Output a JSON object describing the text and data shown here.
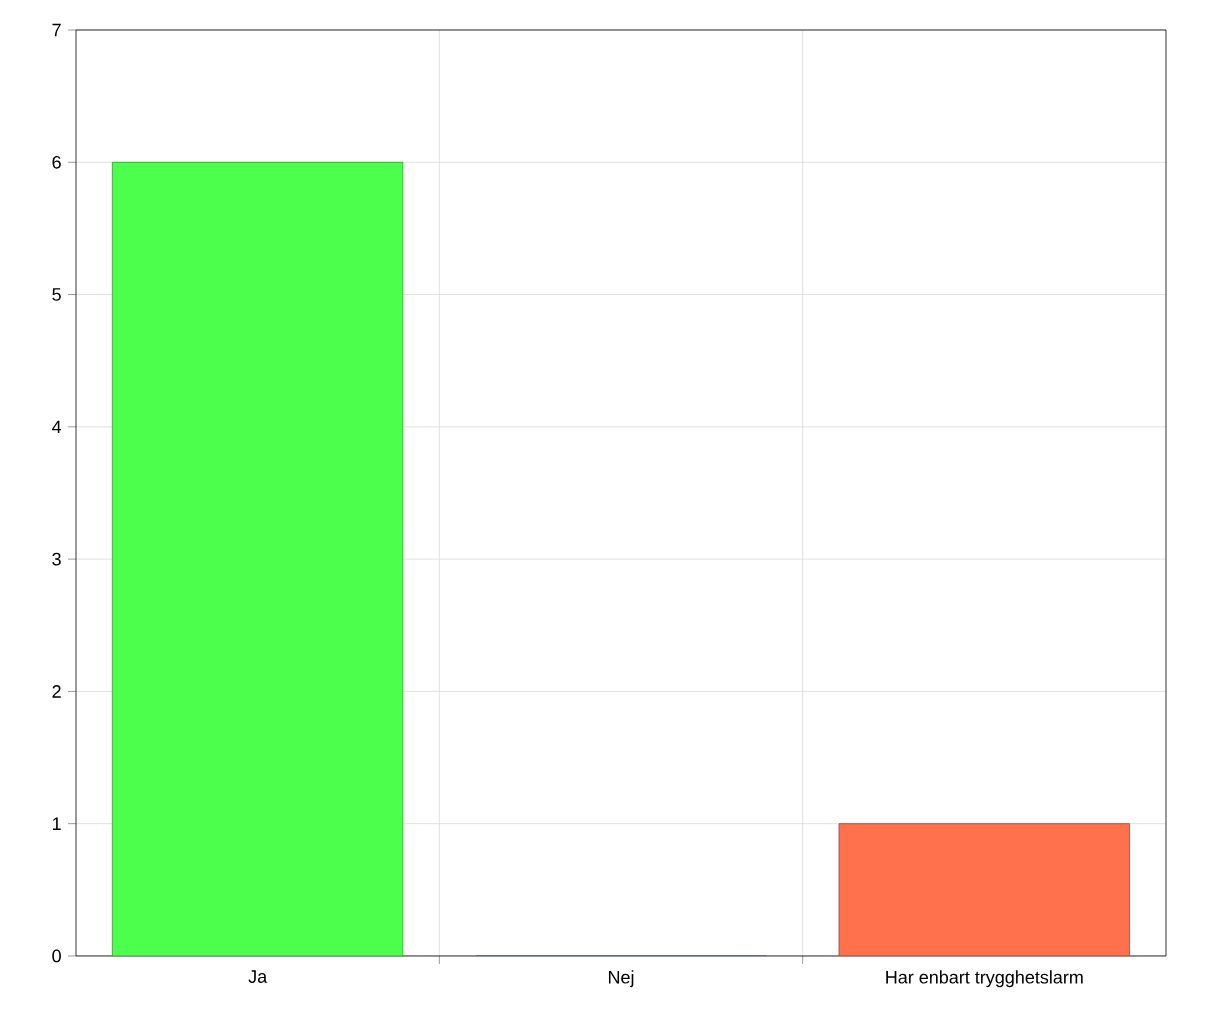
{
  "chart_data": {
    "type": "bar",
    "categories": [
      "Ja",
      "Nej",
      "Har enbart trygghetslarm"
    ],
    "values": [
      6,
      0,
      1
    ],
    "colors": [
      "#4cff4c",
      "#4c4cff",
      "#ff704c"
    ],
    "ylim": [
      0,
      7
    ],
    "yticks": [
      0,
      1,
      2,
      3,
      4,
      5,
      6,
      7
    ],
    "grid": true
  }
}
